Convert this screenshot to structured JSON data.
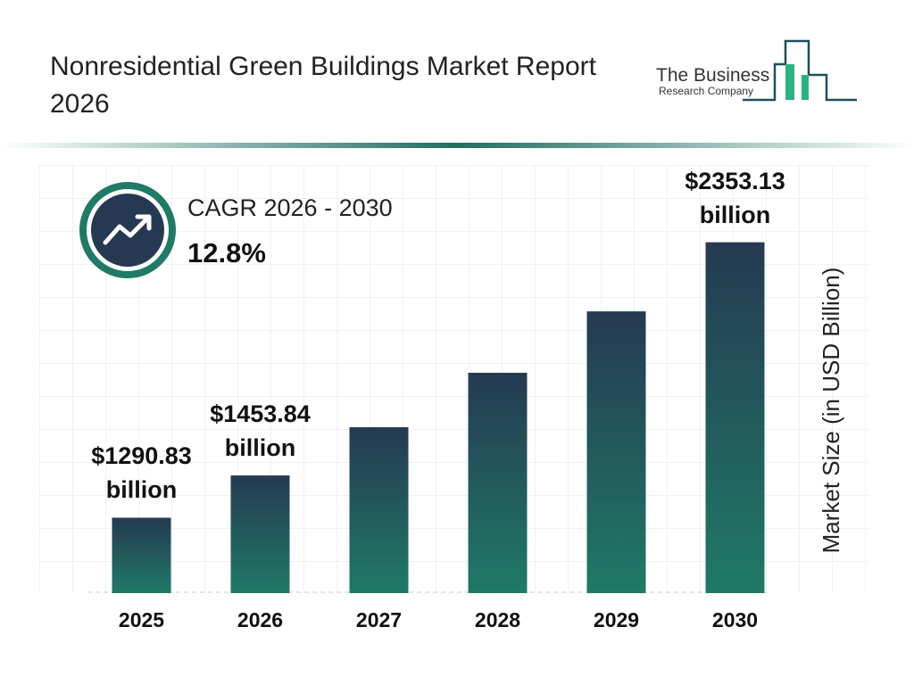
{
  "chart_data": {
    "type": "bar",
    "title": "Nonresidential Green Buildings Market Report 2026",
    "brand": [
      "The Business",
      "Research Company"
    ],
    "cagr_label": "CAGR 2026 - 2030",
    "cagr_value": "12.8%",
    "y_axis_label": "Market Size (in USD Billion)",
    "categories": [
      "2025",
      "2026",
      "2027",
      "2028",
      "2029",
      "2030"
    ],
    "values": [
      1290.83,
      1453.84,
      1639.93,
      1849.84,
      2086.62,
      2353.13
    ],
    "value_labels": [
      "$1290.83 billion",
      "$1453.84 billion",
      null,
      null,
      null,
      "$2353.13 billion"
    ],
    "color": "#1f7a66",
    "ylim": [
      1000,
      2400
    ]
  }
}
